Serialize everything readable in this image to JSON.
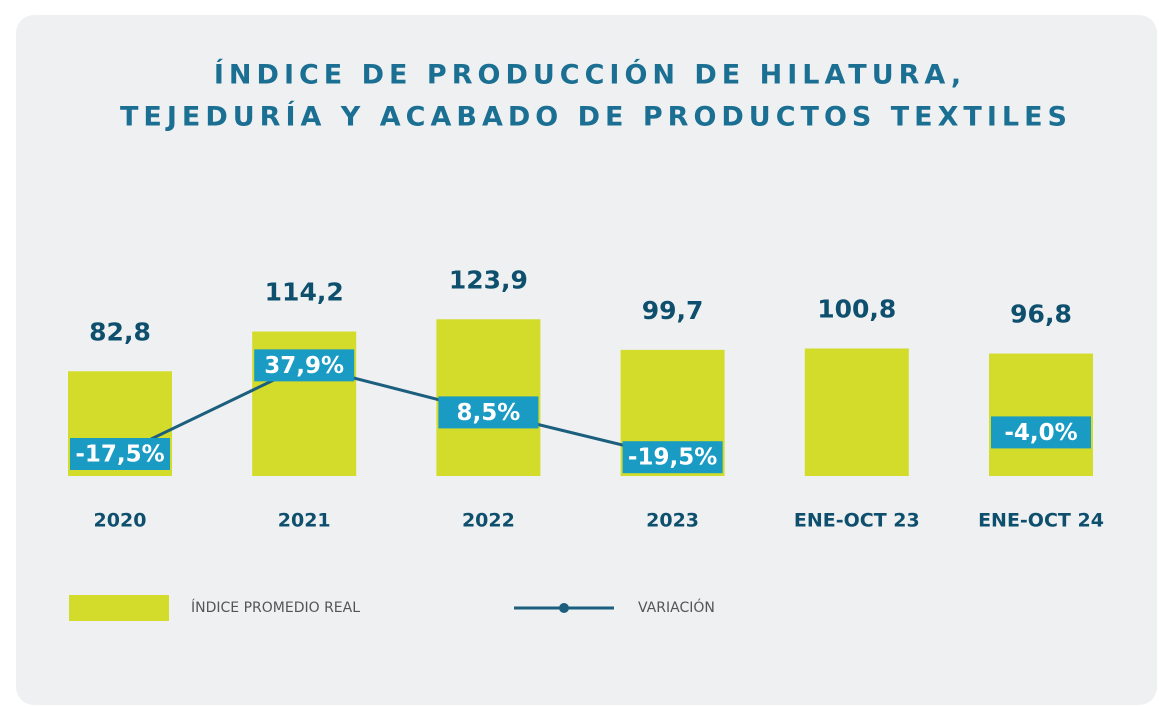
{
  "chart_data": {
    "type": "bar",
    "title": [
      "ÍNDICE DE PRODUCCIÓN DE HILATURA,",
      "TEJEDURÍA Y ACABADO DE PRODUCTOS TEXTILES"
    ],
    "categories": [
      "2020",
      "2021",
      "2022",
      "2023",
      "ENE-OCT 23",
      "ENE-OCT 24"
    ],
    "series": [
      {
        "name": "ÍNDICE PROMEDIO REAL",
        "color": "#d3dc2b",
        "values": [
          82.8,
          114.2,
          123.9,
          99.7,
          100.8,
          96.8
        ],
        "value_labels": [
          "82,8",
          "114,2",
          "123,9",
          "99,7",
          "100,8",
          "96,8"
        ]
      },
      {
        "name": "VARIACIÓN",
        "type": "line",
        "color": "#1b5e7d",
        "label_color": "#1a9bc3",
        "values": [
          -17.5,
          37.9,
          8.5,
          -19.5,
          null,
          -4.0
        ],
        "value_labels": [
          "-17,5%",
          "37,9%",
          "8,5%",
          "-19,5%",
          null,
          "-4,0%"
        ]
      }
    ]
  }
}
